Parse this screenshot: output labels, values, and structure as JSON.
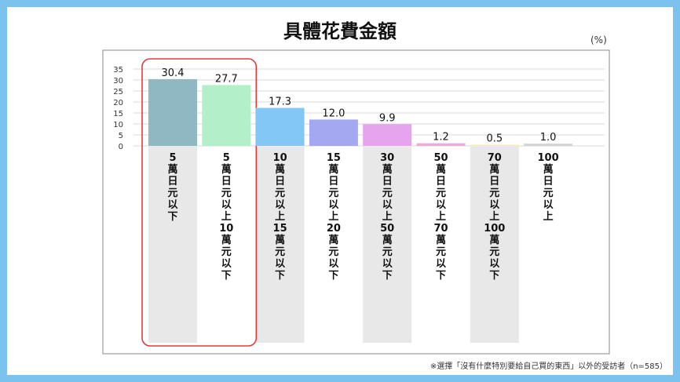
{
  "title": "具體花費金額",
  "unit": "(%)",
  "footnote": "※選擇「沒有什麼特別要給自己買的東西」以外的受訪者（n=585）",
  "chart_data": {
    "type": "bar",
    "title": "具體花費金額",
    "unit": "(%)",
    "ylim": [
      0,
      35
    ],
    "yticks": [
      0,
      5,
      10,
      15,
      20,
      25,
      30,
      35
    ],
    "grid": true,
    "categories": [
      "5萬日元以下",
      "5萬日元以上10萬元以下",
      "10萬日元以上15萬元以下",
      "15萬日元以上20萬元以下",
      "30萬日元以上50萬元以下",
      "50萬日元以上70萬元以下",
      "70萬日元以上100萬元以下",
      "100萬日元以上"
    ],
    "category_labels": [
      [
        "5",
        "萬",
        "日",
        "元",
        "以",
        "下"
      ],
      [
        "5",
        "萬",
        "日",
        "元",
        "以",
        "上",
        "10",
        "萬",
        "元",
        "以",
        "下"
      ],
      [
        "10",
        "萬",
        "日",
        "元",
        "以",
        "上",
        "15",
        "萬",
        "元",
        "以",
        "下"
      ],
      [
        "15",
        "萬",
        "日",
        "元",
        "以",
        "上",
        "20",
        "萬",
        "元",
        "以",
        "下"
      ],
      [
        "30",
        "萬",
        "日",
        "元",
        "以",
        "上",
        "50",
        "萬",
        "元",
        "以",
        "下"
      ],
      [
        "50",
        "萬",
        "日",
        "元",
        "以",
        "上",
        "70",
        "萬",
        "元",
        "以",
        "下"
      ],
      [
        "70",
        "萬",
        "日",
        "元",
        "以",
        "上",
        "100",
        "萬",
        "元",
        "以",
        "下"
      ],
      [
        "100",
        "萬",
        "日",
        "元",
        "以",
        "上"
      ]
    ],
    "values": [
      30.4,
      27.7,
      17.3,
      12.0,
      9.9,
      1.2,
      0.5,
      1.0
    ],
    "value_labels": [
      "30.4",
      "27.7",
      "17.3",
      "12.0",
      "9.9",
      "1.2",
      "0.5",
      "1.0"
    ],
    "colors": [
      "#8fb8c2",
      "#b3efc8",
      "#82c7f5",
      "#a3a8f0",
      "#e6a3ee",
      "#f3a9d6",
      "#f5ef9a",
      "#d2d2d2"
    ],
    "highlight_categories": [
      0,
      1
    ],
    "highlight_color": "#e23b3b"
  }
}
